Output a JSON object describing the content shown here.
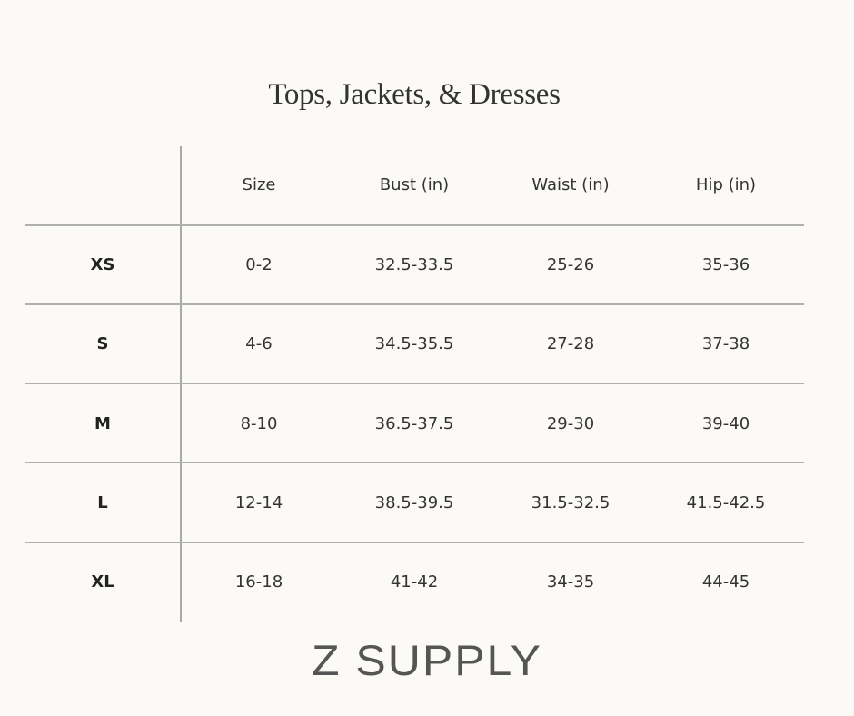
{
  "title": "Tops, Jackets, & Dresses",
  "table": {
    "headers": [
      "",
      "Size",
      "Bust (in)",
      "Waist (in)",
      "Hip (in)"
    ],
    "rows": [
      [
        "XS",
        "0-2",
        "32.5-33.5",
        "25-26",
        "35-36"
      ],
      [
        "S",
        "4-6",
        "34.5-35.5",
        "27-28",
        "37-38"
      ],
      [
        "M",
        "8-10",
        "36.5-37.5",
        "29-30",
        "39-40"
      ],
      [
        "L",
        "12-14",
        "38.5-39.5",
        "31.5-32.5",
        "41.5-42.5"
      ],
      [
        "XL",
        "16-18",
        "41-42",
        "34-35",
        "44-45"
      ]
    ]
  },
  "brand": "Z SUPPLY",
  "colors": {
    "background": "#fcfaf7",
    "rule": "#b0b0b0",
    "text": "#333333"
  }
}
